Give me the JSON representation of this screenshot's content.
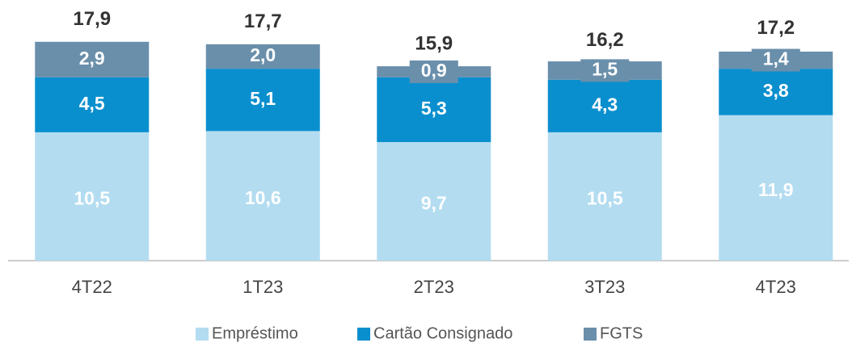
{
  "chart_data": {
    "type": "stacked_bar",
    "categories": [
      "4T22",
      "1T23",
      "2T23",
      "3T23",
      "4T23"
    ],
    "series": [
      {
        "name": "Empréstimo",
        "color": "#b3dcf0",
        "values": [
          10.5,
          10.6,
          9.7,
          10.5,
          11.9
        ],
        "value_labels": [
          "10,5",
          "10,6",
          "9,7",
          "10,5",
          "11,9"
        ]
      },
      {
        "name": "Cartão Consignado",
        "color": "#0a8fce",
        "values": [
          4.5,
          5.1,
          5.3,
          4.3,
          3.8
        ],
        "value_labels": [
          "4,5",
          "5,1",
          "5,3",
          "4,3",
          "3,8"
        ]
      },
      {
        "name": "FGTS",
        "color": "#6a8fab",
        "values": [
          2.9,
          2.0,
          0.9,
          1.5,
          1.4
        ],
        "value_labels": [
          "2,9",
          "2,0",
          "0,9",
          "1,5",
          "1,4"
        ]
      }
    ],
    "totals": [
      17.9,
      17.7,
      15.9,
      16.2,
      17.2
    ],
    "total_labels": [
      "17,9",
      "17,7",
      "15,9",
      "16,2",
      "17,2"
    ],
    "legend": "bottom"
  }
}
